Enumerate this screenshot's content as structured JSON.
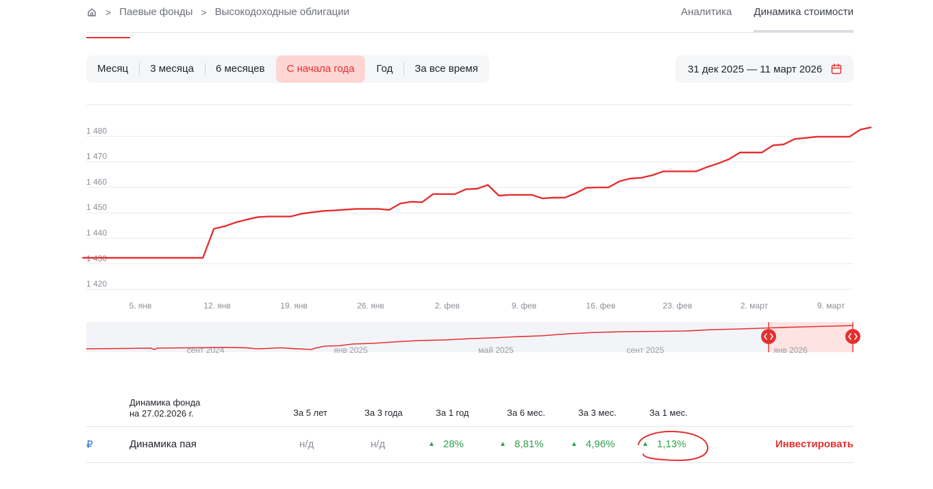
{
  "breadcrumb": {
    "items": [
      "Паевые фонды",
      "Высокодоходные облигации"
    ],
    "separator": ">"
  },
  "tabs": [
    {
      "label": "Аналитика",
      "active": false
    },
    {
      "label": "Динамика стоимости",
      "active": true
    }
  ],
  "periods": [
    {
      "label": "Месяц",
      "active": false
    },
    {
      "label": "3 месяца",
      "active": false
    },
    {
      "label": "6 месяцев",
      "active": false
    },
    {
      "label": "С начала года",
      "active": true
    },
    {
      "label": "Год",
      "active": false
    },
    {
      "label": "За все время",
      "active": false
    }
  ],
  "date_range": "31 дек 2025 — 11 март 2026",
  "colors": {
    "accent": "#e3302f",
    "accent_soft": "#fdd5d3",
    "positive": "#2fa24a",
    "muted": "#8a8e96"
  },
  "chart_data": {
    "type": "line",
    "y_ticks": [
      "1 420",
      "1 430",
      "1 440",
      "1 450",
      "1 460",
      "1 470",
      "1 480"
    ],
    "ylim": [
      1416,
      1490
    ],
    "x_ticks": [
      "5. янв",
      "12. янв",
      "19. янв",
      "26. янв",
      "2. фев",
      "9. фев",
      "16. фев",
      "23. фев",
      "2. март",
      "9. март"
    ],
    "x_tick_days": [
      5,
      12,
      19,
      26,
      33,
      40,
      47,
      54,
      61,
      68
    ],
    "series": [
      {
        "points": [
          [
            -0.3,
            1430.2
          ],
          [
            10.7,
            1430.2
          ],
          [
            11.7,
            1441.6
          ],
          [
            12.7,
            1442.6
          ],
          [
            13.7,
            1444.1
          ],
          [
            14.7,
            1445.2
          ],
          [
            15.7,
            1446.2
          ],
          [
            16.7,
            1446.4
          ],
          [
            17.7,
            1446.4
          ],
          [
            18.7,
            1446.4
          ],
          [
            19.7,
            1447.5
          ],
          [
            20.7,
            1448.1
          ],
          [
            21.7,
            1448.6
          ],
          [
            22.7,
            1448.8
          ],
          [
            23.7,
            1449.1
          ],
          [
            24.7,
            1449.4
          ],
          [
            25.7,
            1449.4
          ],
          [
            26.7,
            1449.4
          ],
          [
            27.7,
            1449.0
          ],
          [
            28.7,
            1451.5
          ],
          [
            29.7,
            1452.2
          ],
          [
            30.7,
            1452.0
          ],
          [
            31.7,
            1455.2
          ],
          [
            32.7,
            1455.2
          ],
          [
            33.7,
            1455.2
          ],
          [
            34.7,
            1457.1
          ],
          [
            35.7,
            1457.3
          ],
          [
            36.7,
            1458.8
          ],
          [
            37.7,
            1454.6
          ],
          [
            38.7,
            1454.9
          ],
          [
            39.7,
            1454.9
          ],
          [
            40.7,
            1454.9
          ],
          [
            41.7,
            1453.5
          ],
          [
            42.7,
            1453.8
          ],
          [
            43.7,
            1453.8
          ],
          [
            44.7,
            1455.5
          ],
          [
            45.7,
            1457.7
          ],
          [
            46.7,
            1457.8
          ],
          [
            47.7,
            1457.8
          ],
          [
            48.7,
            1460.2
          ],
          [
            49.7,
            1461.3
          ],
          [
            50.7,
            1461.6
          ],
          [
            51.7,
            1462.6
          ],
          [
            52.7,
            1464.1
          ],
          [
            53.7,
            1464.1
          ],
          [
            54.7,
            1464.1
          ],
          [
            55.7,
            1464.1
          ],
          [
            56.7,
            1465.8
          ],
          [
            57.7,
            1467.2
          ],
          [
            58.7,
            1468.9
          ],
          [
            59.7,
            1471.5
          ],
          [
            60.7,
            1471.5
          ],
          [
            61.7,
            1471.5
          ],
          [
            62.7,
            1474.3
          ],
          [
            63.7,
            1474.7
          ],
          [
            64.7,
            1476.8
          ],
          [
            65.7,
            1477.2
          ],
          [
            66.7,
            1477.7
          ],
          [
            67.7,
            1477.7
          ],
          [
            68.7,
            1477.7
          ],
          [
            69.7,
            1477.7
          ],
          [
            70.7,
            1480.5
          ],
          [
            71.7,
            1481.4
          ]
        ]
      }
    ],
    "navigator": {
      "x_labels": [
        "сент 2024",
        "янв 2025",
        "май 2025",
        "сент 2025",
        "янв 2026"
      ]
    }
  },
  "stats": {
    "title_line1": "Динамика фонда",
    "title_line2": "на 27.02.2026 г.",
    "columns": [
      "За 5 лет",
      "За 3 года",
      "За 1 год",
      "За 6 мес.",
      "За 3 мес.",
      "За 1 мес."
    ],
    "row": {
      "currency": "₽",
      "label": "Динамика пая",
      "values": [
        "н/д",
        "н/д",
        "28%",
        "8,81%",
        "4,96%",
        "1,13%"
      ],
      "invest_label": "Инвестировать"
    }
  }
}
